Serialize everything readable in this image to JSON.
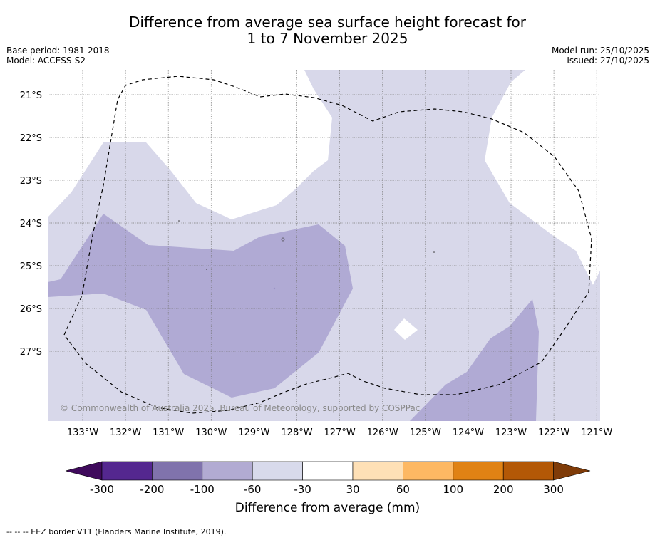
{
  "title": {
    "line1": "Difference from average sea surface height forecast for",
    "line2": "1 to 7 November 2025"
  },
  "info_left": {
    "base_period": "Base period: 1981-2018",
    "model": "Model: ACCESS-S2"
  },
  "info_right": {
    "model_run": "Model run: 25/10/2025",
    "issued": "Issued: 27/10/2025"
  },
  "map": {
    "lat_labels": [
      "21°S",
      "22°S",
      "23°S",
      "24°S",
      "25°S",
      "26°S",
      "27°S"
    ],
    "lon_labels": [
      "133°W",
      "132°W",
      "131°W",
      "130°W",
      "129°W",
      "128°W",
      "127°W",
      "126°W",
      "125°W",
      "124°W",
      "123°W",
      "122°W",
      "121°W"
    ],
    "copyright": "© Commonwealth of Australia 2025, Bureau of Meteorology, supported by COSPPac",
    "colors": {
      "neg_60_30": "#d8d8ea",
      "neg_100_60": "#b0aad4",
      "neutral": "#ffffff"
    }
  },
  "colorbar": {
    "title": "Difference from average (mm)",
    "ticks": [
      "-300",
      "-200",
      "-100",
      "-60",
      "-30",
      "30",
      "60",
      "100",
      "200",
      "300"
    ],
    "colors": [
      "#3f0a5c",
      "#54278f",
      "#8073ac",
      "#b2abd2",
      "#d8daeb",
      "#ffffff",
      "#fee0b6",
      "#fdb863",
      "#e08214",
      "#b35806",
      "#7f3b08"
    ]
  },
  "footnote": "--  --  -- EEZ border V11 (Flanders Marine Institute, 2019)."
}
